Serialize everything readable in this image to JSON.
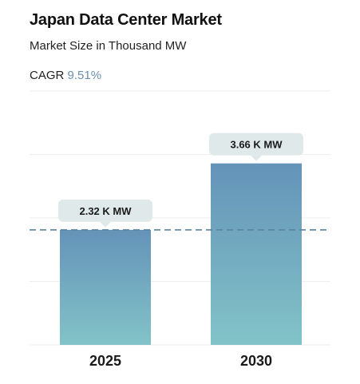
{
  "header": {
    "title": "Japan Data Center Market",
    "subtitle": "Market Size in Thousand MW",
    "cagr_label": "CAGR",
    "cagr_value": "9.51%"
  },
  "colors": {
    "bar_top": "#6493b8",
    "bar_bottom": "#82c3c8",
    "callout_bg": "#dfe9ea",
    "reference_line": "#5a84a0",
    "grid": "#eeeeee",
    "cagr_accent": "#6a8fb0"
  },
  "chart_data": {
    "type": "bar",
    "title": "Japan Data Center Market",
    "subtitle": "Market Size in Thousand MW",
    "categories": [
      "2025",
      "2030"
    ],
    "values": [
      2.32,
      3.66
    ],
    "data_labels": [
      "2.32 K MW",
      "3.66 K MW"
    ],
    "unit": "K MW",
    "ylim": [
      0,
      5.12
    ],
    "reference_line": {
      "value": 2.32,
      "style": "dashed"
    },
    "grid": true,
    "legend": "none"
  }
}
